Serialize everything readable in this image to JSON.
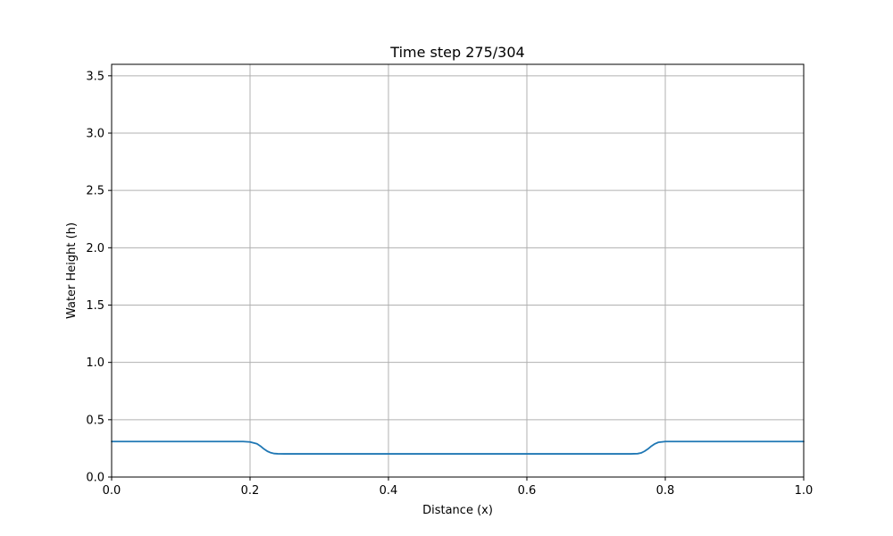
{
  "chart_data": {
    "type": "line",
    "title": "Time step 275/304",
    "xlabel": "Distance (x)",
    "ylabel": "Water Height (h)",
    "xlim": [
      0.0,
      1.0
    ],
    "ylim": [
      0.0,
      3.6
    ],
    "grid": true,
    "x_ticks": [
      0.0,
      0.2,
      0.4,
      0.6,
      0.8,
      1.0
    ],
    "x_tick_labels": [
      "0.0",
      "0.2",
      "0.4",
      "0.6",
      "0.8",
      "1.0"
    ],
    "y_ticks": [
      0.0,
      0.5,
      1.0,
      1.5,
      2.0,
      2.5,
      3.0,
      3.5
    ],
    "y_tick_labels": [
      "0.0",
      "0.5",
      "1.0",
      "1.5",
      "2.0",
      "2.5",
      "3.0",
      "3.5"
    ],
    "colors": {
      "line": "#1f77b4",
      "grid": "#b0b0b0",
      "axes": "#000000"
    },
    "series": [
      {
        "x": [
          0.0,
          0.05,
          0.1,
          0.15,
          0.19,
          0.2,
          0.21,
          0.215,
          0.22,
          0.225,
          0.23,
          0.235,
          0.24,
          0.25,
          0.3,
          0.4,
          0.5,
          0.6,
          0.7,
          0.75,
          0.76,
          0.765,
          0.77,
          0.775,
          0.78,
          0.785,
          0.79,
          0.8,
          0.85,
          0.9,
          0.95,
          1.0
        ],
        "y": [
          0.31,
          0.31,
          0.31,
          0.31,
          0.31,
          0.306,
          0.29,
          0.27,
          0.245,
          0.225,
          0.212,
          0.205,
          0.203,
          0.202,
          0.202,
          0.202,
          0.202,
          0.202,
          0.202,
          0.202,
          0.204,
          0.21,
          0.225,
          0.245,
          0.27,
          0.29,
          0.303,
          0.31,
          0.31,
          0.31,
          0.31,
          0.31
        ]
      }
    ]
  }
}
